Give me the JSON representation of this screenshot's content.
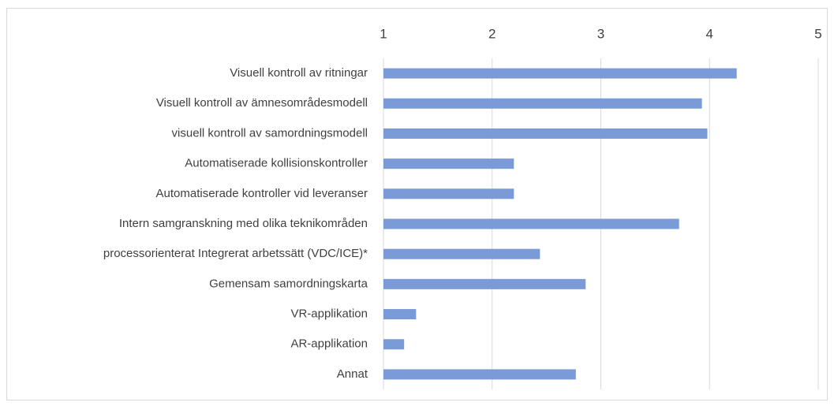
{
  "chart_data": {
    "type": "barh",
    "categories": [
      "Visuell kontroll av ritningar",
      "Visuell kontroll av ämnesområdesmodell",
      "visuell kontroll av samordningsmodell",
      "Automatiserade kollisionskontroller",
      "Automatiserade kontroller vid leveranser",
      "Intern samgranskning med olika teknikområden",
      "processorienterat Integrerat arbetssätt (VDC/ICE)*",
      "Gemensam samordningskarta",
      "VR-applikation",
      "AR-applikation",
      "Annat"
    ],
    "values": [
      4.25,
      3.93,
      3.98,
      2.2,
      2.2,
      3.72,
      2.44,
      2.86,
      1.3,
      1.19,
      2.77
    ],
    "color": "#7a9bd8",
    "xlim": [
      1,
      5
    ],
    "xticks": [
      1,
      2,
      3,
      4,
      5
    ],
    "grid": true
  }
}
